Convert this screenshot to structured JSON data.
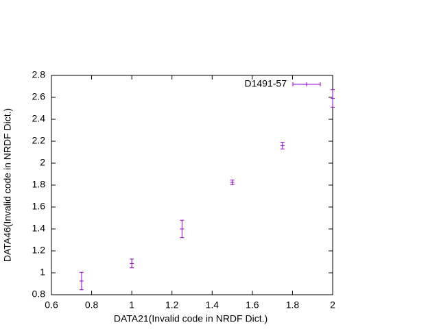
{
  "chart_data": {
    "type": "errorbar",
    "xlabel": "DATA21(Invalid code in NRDF Dict.)",
    "ylabel": "DATA46(Invalid code in NRDF Dict.)",
    "x": [
      0.75,
      1.0,
      1.25,
      1.5,
      1.75,
      2.0
    ],
    "series": [
      {
        "name": "D1491-57",
        "color": "#9400d3",
        "values": [
          0.925,
          1.085,
          1.4,
          1.825,
          2.16,
          2.59
        ],
        "errors": [
          0.08,
          0.04,
          0.08,
          0.02,
          0.03,
          0.08
        ]
      }
    ],
    "xlim": [
      0.6,
      2.0
    ],
    "ylim": [
      0.8,
      2.8
    ],
    "xticks": [
      0.6,
      0.8,
      1,
      1.2,
      1.4,
      1.6,
      1.8,
      2
    ],
    "yticks": [
      0.8,
      1,
      1.2,
      1.4,
      1.6,
      1.8,
      2,
      2.2,
      2.4,
      2.6,
      2.8
    ],
    "legend": "top-right"
  }
}
